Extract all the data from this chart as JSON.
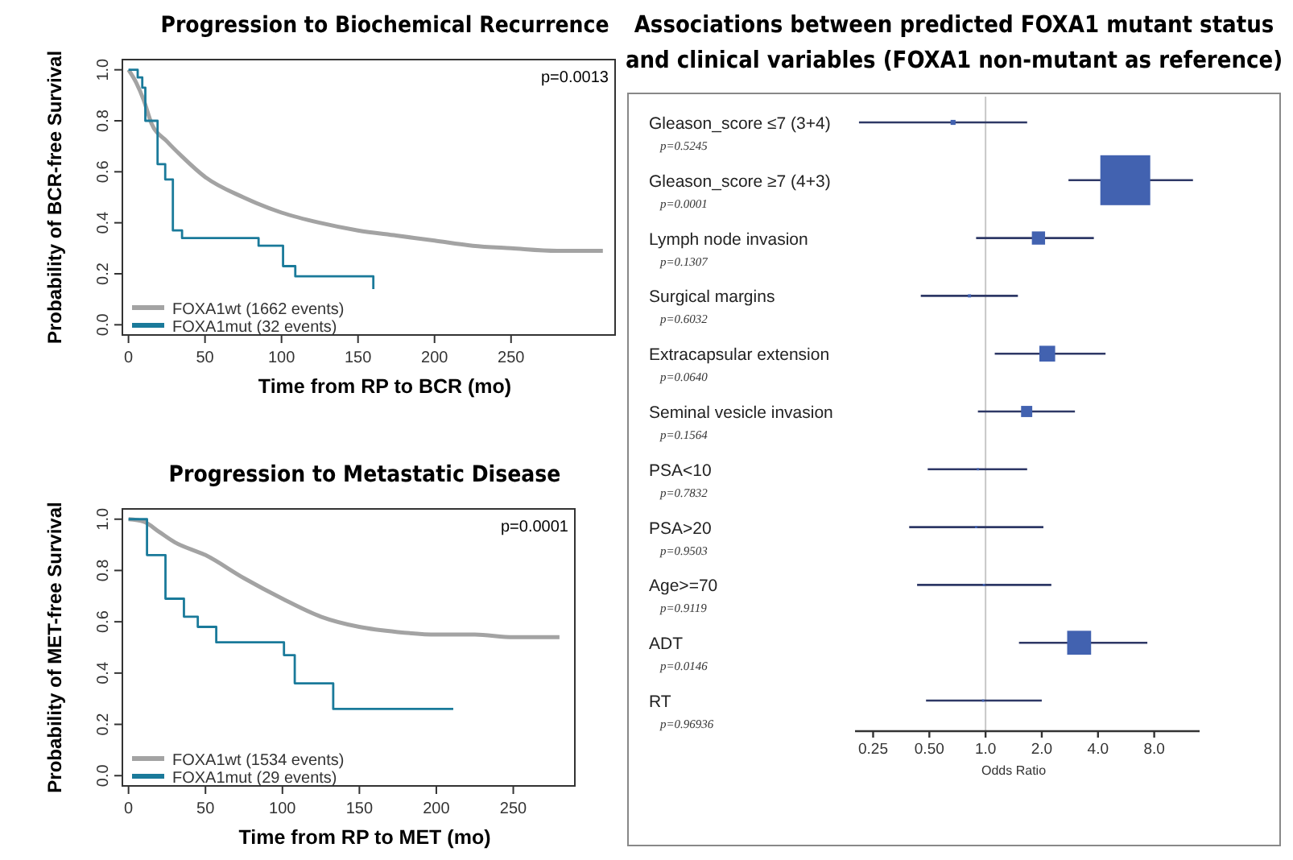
{
  "chart_data": [
    {
      "type": "step",
      "title": "Progression to Biochemical Recurrence",
      "xlabel": "Time from RP to BCR (mo)",
      "ylabel": "Probability of BCR-free Survival",
      "annotations": [
        "p=0.0013"
      ],
      "xlim": [
        -4,
        318
      ],
      "ylim": [
        -0.04,
        1.04
      ],
      "xticks": [
        0,
        50,
        100,
        150,
        200,
        250
      ],
      "yticks": [
        {
          "value": 0,
          "label": "0.0"
        },
        {
          "value": 0.2,
          "label": "0.2"
        },
        {
          "value": 0.4,
          "label": "0.4"
        },
        {
          "value": 0.6,
          "label": "0.6"
        },
        {
          "value": 0.8,
          "label": "0.8"
        },
        {
          "value": 1,
          "label": "1.0"
        }
      ],
      "legend": "bottom left",
      "line_style": "solid",
      "series": [
        {
          "name": "FOXA1wt (1662 events)",
          "type": "line",
          "color": "#a3a3a3",
          "x": [
            0,
            5,
            10,
            15,
            25,
            35,
            50,
            75,
            100,
            125,
            150,
            175,
            200,
            225,
            250,
            280,
            310
          ],
          "values": [
            1,
            0.95,
            0.88,
            0.79,
            0.72,
            0.66,
            0.58,
            0.5,
            0.44,
            0.4,
            0.37,
            0.35,
            0.33,
            0.31,
            0.3,
            0.29,
            0.29
          ]
        },
        {
          "name": "FOXA1mut (32 events)",
          "color": "#1a7a9a",
          "x": [
            0,
            6,
            9,
            11,
            19,
            24,
            29,
            35,
            85,
            101,
            109,
            160
          ],
          "values": [
            1,
            0.97,
            0.93,
            0.8,
            0.63,
            0.57,
            0.37,
            0.34,
            0.31,
            0.23,
            0.19,
            0.14
          ]
        }
      ]
    },
    {
      "type": "step",
      "title": "Progression to Metastatic Disease",
      "xlabel": "Time from RP to MET (mo)",
      "ylabel": "Probability of MET-free Survival",
      "annotations": [
        "p=0.0001"
      ],
      "xlim": [
        -4,
        290
      ],
      "ylim": [
        -0.04,
        1.04
      ],
      "xticks": [
        0,
        50,
        100,
        150,
        200,
        250
      ],
      "yticks": [
        {
          "value": 0,
          "label": "0.0"
        },
        {
          "value": 0.2,
          "label": "0.2"
        },
        {
          "value": 0.4,
          "label": "0.4"
        },
        {
          "value": 0.6,
          "label": "0.6"
        },
        {
          "value": 0.8,
          "label": "0.8"
        },
        {
          "value": 1,
          "label": "1.0"
        }
      ],
      "legend": "bottom left",
      "line_style": "solid",
      "series": [
        {
          "name": "FOXA1wt (1534 events)",
          "type": "line",
          "color": "#a3a3a3",
          "x": [
            0,
            10,
            20,
            30,
            50,
            75,
            100,
            125,
            150,
            175,
            200,
            225,
            250,
            280
          ],
          "values": [
            1,
            0.99,
            0.95,
            0.91,
            0.86,
            0.77,
            0.69,
            0.62,
            0.58,
            0.56,
            0.55,
            0.55,
            0.54,
            0.54
          ]
        },
        {
          "name": "FOXA1mut (29 events)",
          "color": "#1a7a9a",
          "x": [
            0,
            12,
            24,
            36,
            45,
            57,
            101,
            108,
            133,
            211
          ],
          "values": [
            1,
            0.86,
            0.69,
            0.62,
            0.58,
            0.52,
            0.47,
            0.36,
            0.26,
            0.26
          ]
        }
      ]
    },
    {
      "type": "bubble",
      "orientation": "horizontal",
      "title": "Associations between predicted FOXA1 mutant status\nand clinical variables (FOXA1 non-mutant as reference)",
      "xlabel": "Odds Ratio",
      "marker": "square",
      "color": "#4262b0",
      "log": "x",
      "xlim": [
        0.2,
        14
      ],
      "xticks": [
        0.25,
        {
          "value": 0.5,
          "label": "0.50"
        },
        {
          "value": 1,
          "label": "1.0"
        },
        {
          "value": 2,
          "label": "2.0"
        },
        {
          "value": 4,
          "label": "4.0"
        },
        {
          "value": 8,
          "label": "8.0"
        }
      ],
      "categories": [
        "Gleason_score ≤7 (3+4)",
        "Gleason_score ≥7 (4+3)",
        "Lymph node invasion",
        "Surgical margins",
        "Extracapsular extension",
        "Seminal vesicle invasion",
        "PSA<10",
        "PSA>20",
        "Age>=70",
        "ADT",
        "RT"
      ],
      "values": [
        0.67,
        5.6,
        1.92,
        0.82,
        2.14,
        1.66,
        0.91,
        0.89,
        0.98,
        3.17,
        0.97
      ],
      "errors": [
        [
          0.21,
          1.67
        ],
        [
          2.78,
          12.9
        ],
        [
          0.89,
          3.8
        ],
        [
          0.45,
          1.49
        ],
        [
          1.12,
          4.39
        ],
        [
          0.91,
          3.01
        ],
        [
          0.49,
          1.67
        ],
        [
          0.39,
          2.04
        ],
        [
          0.43,
          2.25
        ],
        [
          1.51,
          7.35
        ],
        [
          0.48,
          2.0
        ]
      ],
      "sizes": [
        0.01,
        1,
        0.07,
        0.004,
        0.1,
        0.05,
        0.002,
        0.002,
        0.002,
        0.23,
        0.002
      ],
      "ref_lines": [
        {
          "axis": "x",
          "value": 1,
          "color": "#c8c8c8"
        }
      ],
      "annotations": [
        "p=0.5245",
        "p=0.0001",
        "p=0.1307",
        "p=0.6032",
        "p=0.0640",
        "p=0.1564",
        "p=0.7832",
        "p=0.9503",
        "p=0.9119",
        "p=0.0146",
        "p=0.96936"
      ]
    }
  ]
}
